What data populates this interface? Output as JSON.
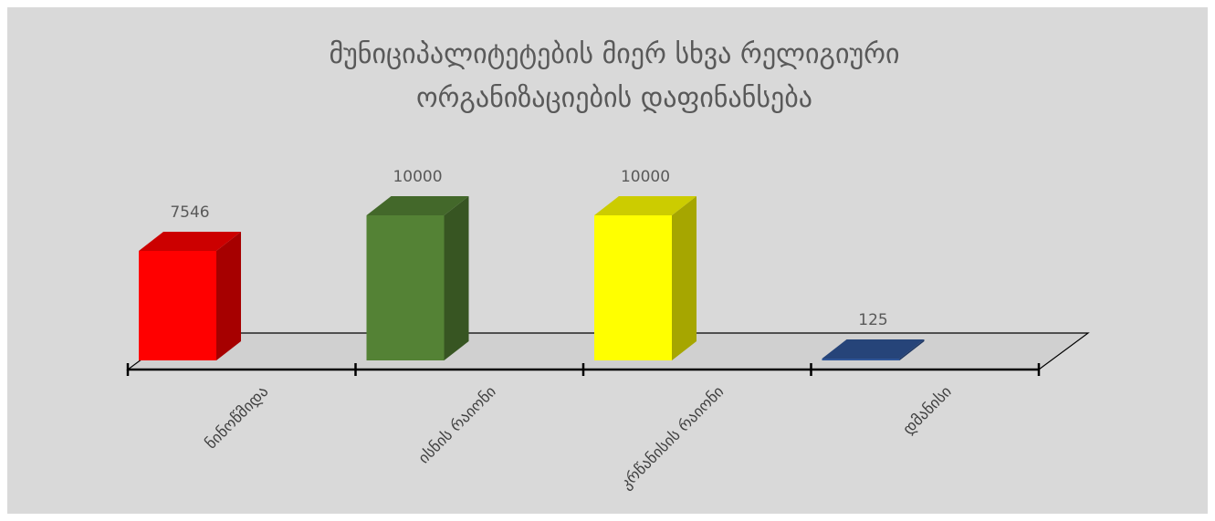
{
  "chart_data": {
    "type": "bar3d",
    "title": "მუნიციპალიტეტების მიერ სხვა რელიგიური ორგანიზაციების დაფინანსება",
    "categories": [
      "ნინოწმიდა",
      "ისნის რაიონი",
      "კრწანისის რაიონი",
      "დმანისი"
    ],
    "values": [
      7546,
      10000,
      10000,
      125
    ],
    "colors": [
      "#ff0000",
      "#548235",
      "#ffff00",
      "#2f5597"
    ]
  }
}
